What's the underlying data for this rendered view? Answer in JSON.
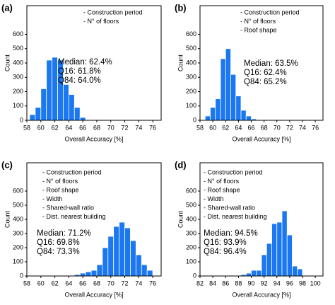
{
  "chart_data": [
    {
      "type": "histogram",
      "label": "(a)",
      "features": [
        "- Construction period",
        "- N° of floors"
      ],
      "stats": [
        "Median: 62.4%",
        "Q16: 61.8%",
        "Q84: 64.0%"
      ],
      "xlabel": "Overall Accuracy [%]",
      "ylabel": "Count",
      "color": "#1b78f0",
      "bins": [
        58.4,
        59.2,
        60.0,
        60.8,
        61.6,
        62.4,
        63.2,
        64.0,
        64.8,
        65.6,
        66.4
      ],
      "counts": [
        40,
        90,
        220,
        420,
        440,
        420,
        250,
        180,
        90,
        20
      ],
      "xlim": [
        58,
        77.2
      ],
      "ylim": [
        0,
        800
      ],
      "xticks": [
        58,
        60,
        62,
        64,
        66,
        68,
        70,
        72,
        74,
        76
      ],
      "yticks": [
        0,
        100,
        200,
        300,
        400,
        500,
        600
      ]
    },
    {
      "type": "histogram",
      "label": "(b)",
      "features": [
        "- Construction period",
        "- N° of floors",
        "- Roof shape"
      ],
      "stats": [
        "Median: 63.5%",
        "Q16: 62.4%",
        "Q84: 65.2%"
      ],
      "xlabel": "Overall Accuracy [%]",
      "ylabel": "Count",
      "color": "#1b78f0",
      "bins": [
        58.8,
        59.6,
        60.4,
        61.2,
        62.0,
        62.8,
        63.6,
        64.4,
        65.2,
        66.0,
        66.8
      ],
      "counts": [
        30,
        90,
        150,
        430,
        500,
        320,
        170,
        70,
        30,
        10
      ],
      "xlim": [
        58,
        77.2
      ],
      "ylim": [
        0,
        800
      ],
      "xticks": [
        58,
        60,
        62,
        64,
        66,
        68,
        70,
        72,
        74,
        76
      ],
      "yticks": [
        0,
        100,
        200,
        300,
        400,
        500,
        600
      ]
    },
    {
      "type": "histogram",
      "label": "(c)",
      "features": [
        "- Construction period",
        "- N° of floors",
        "- Roof shape",
        "- Width",
        "- Shared-wall ratio",
        "- Dist. nearest building"
      ],
      "stats": [
        "Median: 71.2%",
        "Q16: 69.8%",
        "Q84: 73.3%"
      ],
      "xlabel": "Overall Accuracy [%]",
      "ylabel": "Count",
      "color": "#1b78f0",
      "bins": [
        64.8,
        65.6,
        66.4,
        67.2,
        68.0,
        68.8,
        69.6,
        70.4,
        71.2,
        72.0,
        72.8,
        73.6,
        74.4,
        75.2,
        76.0
      ],
      "counts": [
        10,
        20,
        30,
        40,
        80,
        200,
        280,
        350,
        380,
        340,
        250,
        150,
        80,
        40
      ],
      "xlim": [
        58,
        77.2
      ],
      "ylim": [
        0,
        800
      ],
      "xticks": [
        58,
        60,
        62,
        64,
        66,
        68,
        70,
        72,
        74,
        76
      ],
      "yticks": [
        0,
        100,
        200,
        300,
        400,
        500,
        600
      ]
    },
    {
      "type": "histogram",
      "label": "(d)",
      "features": [
        "- Construction period",
        "- N° of floors",
        "- Roof shape",
        "- Width",
        "- Shared-wall ratio",
        "- Dist. nearest building"
      ],
      "stats": [
        "Median: 94.5%",
        "Q16: 93.9%",
        "Q84: 96.4%"
      ],
      "xlabel": "Overall Accuracy [%]",
      "ylabel": "Count",
      "color": "#1b78f0",
      "bins": [
        88.4,
        89.2,
        90.0,
        90.8,
        91.6,
        92.4,
        93.2,
        94.0,
        94.8,
        95.6,
        96.4,
        97.2,
        98.0
      ],
      "counts": [
        10,
        20,
        40,
        40,
        150,
        230,
        370,
        380,
        460,
        290,
        70,
        50
      ],
      "xlim": [
        82,
        101.2
      ],
      "ylim": [
        0,
        800
      ],
      "xticks": [
        82,
        84,
        86,
        88,
        90,
        92,
        94,
        96,
        98,
        100
      ],
      "yticks": [
        0,
        100,
        200,
        300,
        400,
        500,
        600
      ]
    }
  ]
}
